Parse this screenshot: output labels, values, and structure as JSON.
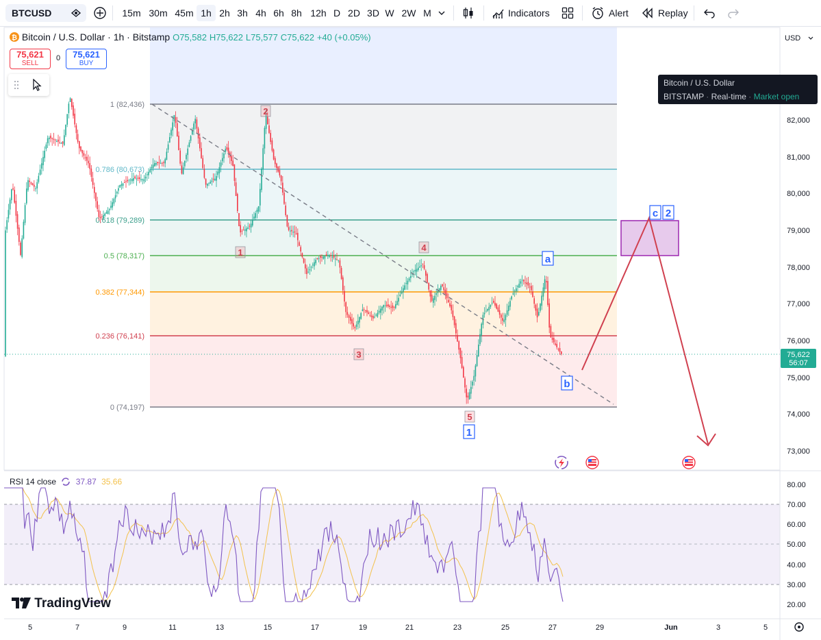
{
  "toolbar": {
    "symbol": "BTCUSD",
    "intervals": [
      "15m",
      "30m",
      "45m",
      "1h",
      "2h",
      "3h",
      "4h",
      "6h",
      "8h",
      "12h",
      "D",
      "2D",
      "3D",
      "W",
      "2W",
      "M"
    ],
    "active_interval": "1h",
    "indicators_label": "Indicators",
    "alert_label": "Alert",
    "replay_label": "Replay"
  },
  "legend": {
    "title": "Bitcoin / U.S. Dollar · 1h · Bitstamp",
    "open": "O75,582",
    "high": "H75,622",
    "low": "L75,577",
    "close": "C75,622",
    "change": "+40 (+0.05%)"
  },
  "trade": {
    "sell_price": "75,621",
    "sell_label": "SELL",
    "spread": "0",
    "buy_price": "75,621",
    "buy_label": "BUY"
  },
  "tooltip": {
    "title": "Bitcoin / U.S. Dollar",
    "exchange": "BITSTAMP",
    "realtime": "Real-time",
    "status": "Market open"
  },
  "price_scale": {
    "currency": "USD",
    "labels": [
      "82,000",
      "81,000",
      "80,000",
      "79,000",
      "78,000",
      "77,000",
      "76,000",
      "75,000",
      "74,000",
      "73,000"
    ],
    "current_price": "75,622",
    "countdown": "56:07"
  },
  "fib": [
    {
      "label": "1 (82,436)",
      "ratio": 1,
      "color": "#787b86"
    },
    {
      "label": "0.786 (80,673)",
      "ratio": 0.786,
      "color": "#5fb8c8"
    },
    {
      "label": "0.618 (79,289)",
      "ratio": 0.618,
      "color": "#3a9e8b"
    },
    {
      "label": "0.5 (78,317)",
      "ratio": 0.5,
      "color": "#4caf50"
    },
    {
      "label": "0.382 (77,344)",
      "ratio": 0.382,
      "color": "#ff9800"
    },
    {
      "label": "0.236 (76,141)",
      "ratio": 0.236,
      "color": "#d0404f"
    },
    {
      "label": "0 (74,197)",
      "ratio": 0,
      "color": "#787b86"
    }
  ],
  "waves": {
    "red": [
      "1",
      "2",
      "3",
      "4",
      "5"
    ],
    "blue": [
      "1",
      "a",
      "b",
      "c",
      "2"
    ]
  },
  "time_axis": [
    "5",
    "7",
    "9",
    "11",
    "13",
    "15",
    "17",
    "19",
    "21",
    "23",
    "25",
    "27",
    "29",
    "Jun",
    "3",
    "5"
  ],
  "rsi": {
    "label": "RSI 14 close",
    "value1": "37.87",
    "value2": "35.66",
    "scale": [
      "80.00",
      "70.00",
      "60.00",
      "50.00",
      "40.00",
      "30.00",
      "20.00"
    ]
  },
  "branding": "TradingView",
  "colors": {
    "up": "#22ab94",
    "down": "#f23645",
    "rsi_line": "#7e57c2",
    "rsi_ma": "#f3c14b",
    "projection": "#d0404f"
  }
}
